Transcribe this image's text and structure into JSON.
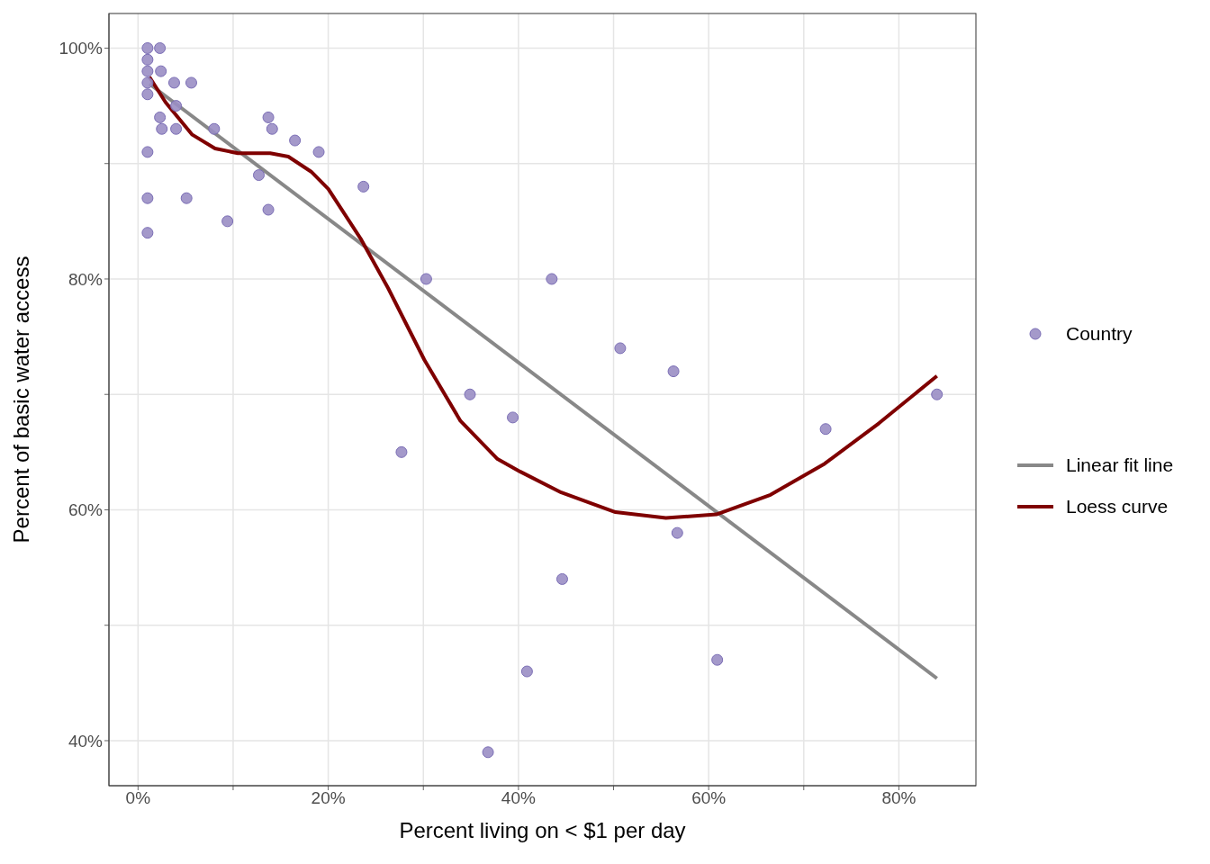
{
  "chart_data": {
    "type": "scatter",
    "xlabel": "Percent living on < $1 per day",
    "ylabel": "Percent of basic water access",
    "xlim": [
      -3.06,
      88.1
    ],
    "ylim": [
      36.1,
      103
    ],
    "xticks": [
      {
        "value": 0,
        "label": "0%"
      },
      {
        "value": 10,
        "label": null
      },
      {
        "value": 20,
        "label": "20%"
      },
      {
        "value": 30,
        "label": null
      },
      {
        "value": 40,
        "label": "40%"
      },
      {
        "value": 50,
        "label": null
      },
      {
        "value": 60,
        "label": "60%"
      },
      {
        "value": 70,
        "label": null
      },
      {
        "value": 80,
        "label": "80%"
      }
    ],
    "yticks": [
      {
        "value": 40,
        "label": "40%"
      },
      {
        "value": 50,
        "label": null
      },
      {
        "value": 60,
        "label": "60%"
      },
      {
        "value": 70,
        "label": null
      },
      {
        "value": 80,
        "label": "80%"
      },
      {
        "value": 90,
        "label": null
      },
      {
        "value": 100,
        "label": "100%"
      }
    ],
    "grid": true,
    "legend": "right",
    "series": [
      {
        "name": "Country",
        "marker": "circle",
        "color": "#9a8ec4",
        "x": [
          1,
          1,
          1,
          2.3,
          2.4,
          1,
          3.8,
          5.6,
          1,
          4,
          2.3,
          2.5,
          4,
          8,
          13.7,
          14.1,
          16.5,
          19,
          1,
          12.7,
          23.7,
          1,
          5.1,
          9.4,
          13.7,
          1,
          30.3,
          43.5,
          50.7,
          56.3,
          34.9,
          39.4,
          27.7,
          72.3,
          84,
          56.7,
          44.6,
          40.9,
          60.9,
          36.8
        ],
        "values": [
          100,
          99,
          98,
          100,
          98,
          97,
          97,
          97,
          96,
          95,
          94,
          93,
          93,
          93,
          94,
          93,
          92,
          91,
          91,
          89,
          88,
          87,
          87,
          85,
          86,
          84,
          80,
          80,
          74,
          72,
          70,
          68,
          65,
          67,
          70,
          58,
          54,
          46,
          47,
          39
        ]
      },
      {
        "name": "Linear fit line",
        "type": "line",
        "color": "#888888",
        "x": [
          1.2,
          84
        ],
        "values": [
          96.9,
          45.4
        ]
      },
      {
        "name": "Loess curve",
        "type": "line",
        "color": "#7f0000",
        "x": [
          1.2,
          2.9,
          5.7,
          8.1,
          10.5,
          13.9,
          15.8,
          18.2,
          20,
          23.4,
          26.3,
          30.1,
          33.9,
          37.8,
          40.2,
          44.5,
          50.2,
          55.5,
          60.8,
          66.5,
          72.2,
          77.9,
          84
        ],
        "values": [
          97.5,
          95.3,
          92.5,
          91.3,
          90.9,
          90.9,
          90.6,
          89.3,
          87.8,
          83.5,
          79.2,
          73,
          67.7,
          64.4,
          63.3,
          61.5,
          59.8,
          59.3,
          59.6,
          61.3,
          64,
          67.5,
          71.6
        ]
      }
    ]
  }
}
